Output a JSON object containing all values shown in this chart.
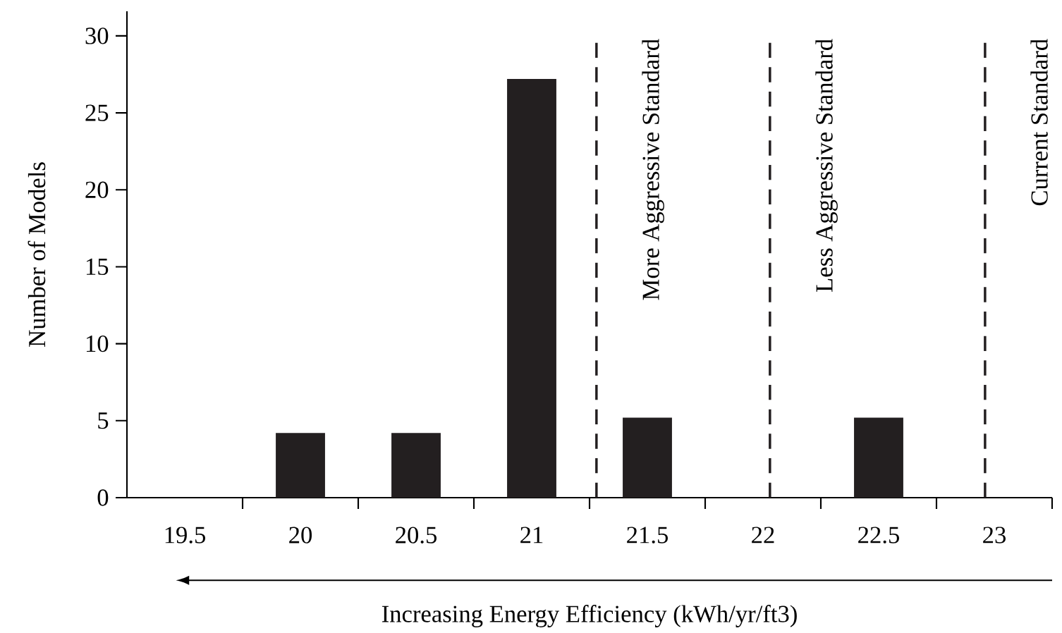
{
  "chart_data": {
    "type": "bar",
    "xlabel": "Increasing Energy Efficiency (kWh/yr/ft3)",
    "ylabel": "Number of Models",
    "x": [
      19.5,
      20,
      20.5,
      21,
      21.5,
      22,
      22.5,
      23
    ],
    "values": [
      0,
      4.2,
      4.2,
      27.2,
      5.2,
      0,
      5.2,
      0
    ],
    "color": "#231f20",
    "xlim": [
      19.25,
      23.25
    ],
    "xticks": [
      19.5,
      {
        "value": 19.75,
        "label": null
      },
      20,
      {
        "value": 20.25,
        "label": null
      },
      20.5,
      {
        "value": 20.75,
        "label": null
      },
      21,
      {
        "value": 21.25,
        "label": null
      },
      21.5,
      {
        "value": 21.75,
        "label": null
      },
      22,
      {
        "value": 22.25,
        "label": null
      },
      22.5,
      {
        "value": 22.75,
        "label": null
      },
      23,
      {
        "value": 23.25,
        "label": null
      }
    ],
    "ylim": [
      0,
      31.6
    ],
    "yticks": [
      0,
      5,
      10,
      15,
      20,
      25,
      30
    ],
    "ref_lines": [
      {
        "axis": "x",
        "value": 21.28,
        "label": "More Aggressive Standard",
        "color": "#231f20",
        "line_style": "dashed"
      },
      {
        "axis": "x",
        "value": 22.03,
        "label": "Less Aggressive Standard",
        "color": "#231f20",
        "line_style": "dashed"
      },
      {
        "axis": "x",
        "value": 22.96,
        "label": "Current Standard",
        "color": "#231f20",
        "line_style": "dashed"
      }
    ],
    "grid": false
  }
}
